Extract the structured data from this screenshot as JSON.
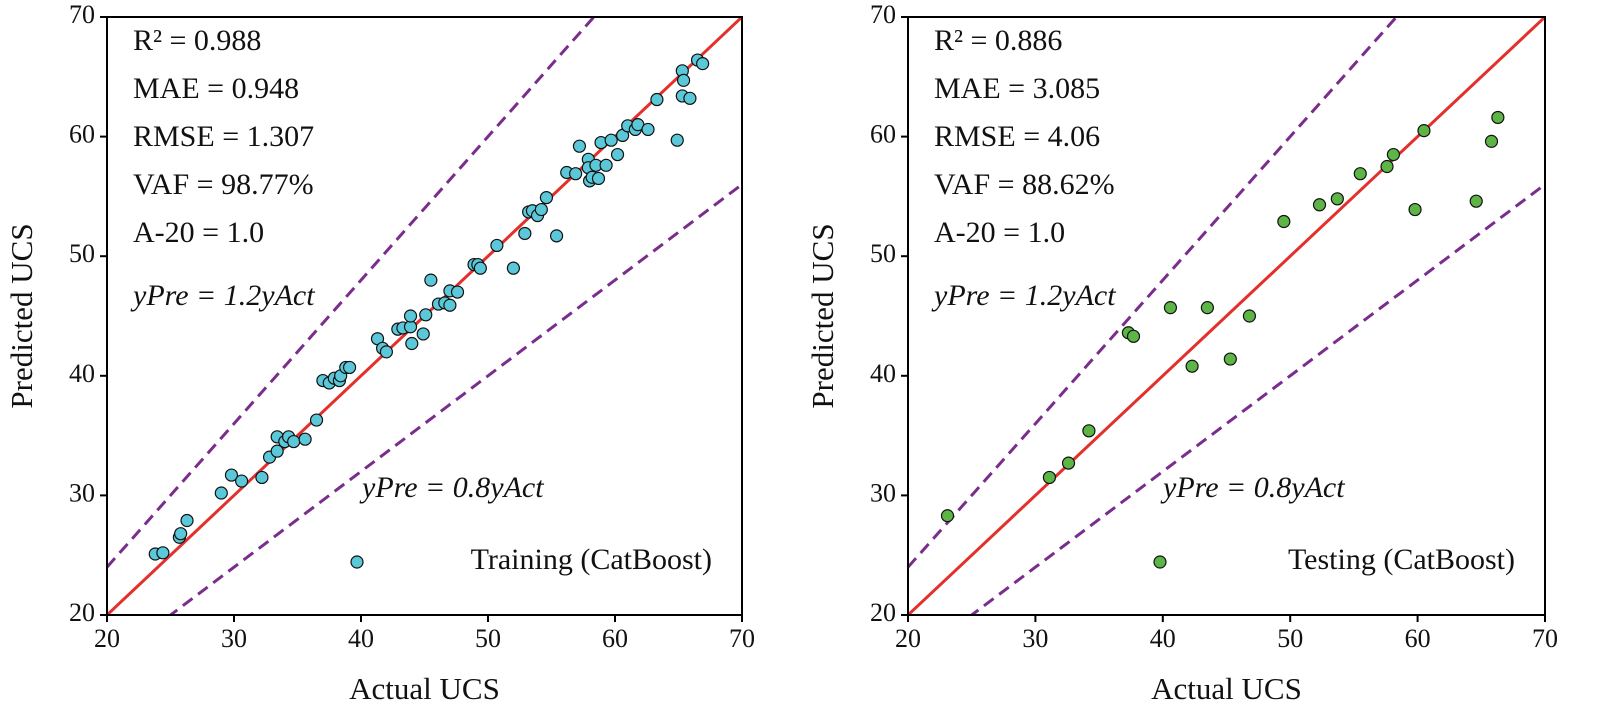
{
  "chart_data": [
    {
      "type": "scatter",
      "x_label": "Actual UCS",
      "y_label": "Predicted UCS",
      "xlim": [
        20,
        70
      ],
      "ylim": [
        20,
        70
      ],
      "xticks": [
        20,
        30,
        40,
        50,
        60,
        70
      ],
      "yticks": [
        20,
        30,
        40,
        50,
        60,
        70
      ],
      "legend": "lower right",
      "annotations": [
        "R² = 0.988",
        "MAE = 0.948",
        "RMSE = 1.307",
        "VAF = 98.77%",
        "A-20 = 1.0"
      ],
      "reference_lines": [
        {
          "slope": 1,
          "color": "#e3302b",
          "style": "solid"
        },
        {
          "slope": 1.2,
          "color": "#7a2d8c",
          "style": "dashed",
          "label": "yPre = 1.2yAct"
        },
        {
          "slope": 0.8,
          "color": "#7a2d8c",
          "style": "dashed",
          "label": "yPre = 0.8yAct"
        }
      ],
      "x": [
        23.8,
        24.4,
        25.7,
        25.8,
        26.3,
        29.0,
        29.8,
        30.6,
        32.2,
        32.8,
        33.4,
        33.4,
        34.0,
        34.3,
        34.7,
        35.6,
        36.5,
        37.0,
        37.5,
        37.9,
        38.3,
        38.4,
        38.8,
        39.1,
        41.3,
        41.7,
        42.0,
        42.9,
        43.3,
        43.9,
        43.9,
        44.0,
        44.9,
        45.1,
        45.5,
        46.1,
        46.6,
        47.0,
        47.0,
        47.6,
        48.9,
        49.2,
        49.4,
        50.7,
        52.0,
        52.9,
        53.2,
        53.5,
        53.9,
        54.2,
        54.6,
        55.4,
        56.2,
        56.9,
        57.2,
        57.9,
        57.9,
        58.0,
        58.2,
        58.5,
        58.7,
        58.9,
        59.3,
        59.7,
        60.2,
        60.6,
        61.0,
        61.6,
        61.8,
        62.6,
        63.3,
        64.9,
        65.3,
        65.4,
        65.3,
        65.9,
        66.5,
        66.9
      ],
      "series": [
        {
          "name": "Training (CatBoost)",
          "color": "#5bc8d9",
          "values": [
            25.1,
            25.2,
            26.5,
            26.8,
            27.9,
            30.2,
            31.7,
            31.2,
            31.5,
            33.2,
            33.7,
            34.9,
            34.5,
            34.9,
            34.5,
            34.7,
            36.3,
            39.6,
            39.4,
            39.8,
            39.6,
            40.0,
            40.7,
            40.7,
            43.1,
            42.3,
            42.0,
            43.9,
            44.0,
            44.1,
            45.0,
            42.7,
            43.5,
            45.1,
            48.0,
            46.0,
            46.1,
            47.1,
            45.9,
            47.0,
            49.3,
            49.3,
            49.0,
            50.9,
            49.0,
            51.9,
            53.7,
            53.8,
            53.4,
            53.9,
            54.9,
            51.7,
            57.0,
            56.9,
            59.2,
            58.1,
            57.4,
            56.3,
            56.6,
            57.6,
            56.5,
            59.5,
            57.6,
            59.7,
            58.5,
            60.1,
            60.9,
            60.6,
            61.0,
            60.6,
            63.1,
            59.7,
            65.5,
            64.7,
            63.4,
            63.2,
            66.4,
            66.1
          ]
        }
      ]
    },
    {
      "type": "scatter",
      "x_label": "Actual UCS",
      "y_label": "Predicted UCS",
      "xlim": [
        20,
        70
      ],
      "ylim": [
        20,
        70
      ],
      "xticks": [
        20,
        30,
        40,
        50,
        60,
        70
      ],
      "yticks": [
        20,
        30,
        40,
        50,
        60,
        70
      ],
      "legend": "lower right",
      "annotations": [
        "R² = 0.886",
        "MAE = 3.085",
        "RMSE = 4.06",
        "VAF = 88.62%",
        "A-20 = 1.0"
      ],
      "reference_lines": [
        {
          "slope": 1,
          "color": "#e3302b",
          "style": "solid"
        },
        {
          "slope": 1.2,
          "color": "#7a2d8c",
          "style": "dashed",
          "label": "yPre = 1.2yAct"
        },
        {
          "slope": 0.8,
          "color": "#7a2d8c",
          "style": "dashed",
          "label": "yPre = 0.8yAct"
        }
      ],
      "x": [
        23.1,
        31.1,
        32.6,
        34.2,
        37.3,
        37.7,
        40.6,
        42.3,
        43.5,
        45.3,
        46.8,
        49.5,
        52.3,
        53.7,
        55.5,
        57.6,
        58.1,
        59.8,
        60.5,
        64.6,
        65.8,
        66.3
      ],
      "series": [
        {
          "name": "Testing (CatBoost)",
          "color": "#5cb545",
          "values": [
            28.3,
            31.5,
            32.7,
            35.4,
            43.6,
            43.3,
            45.7,
            40.8,
            45.7,
            41.4,
            45.0,
            52.9,
            54.3,
            54.8,
            56.9,
            57.5,
            58.5,
            53.9,
            60.5,
            54.6,
            59.6,
            61.6
          ]
        }
      ]
    }
  ]
}
